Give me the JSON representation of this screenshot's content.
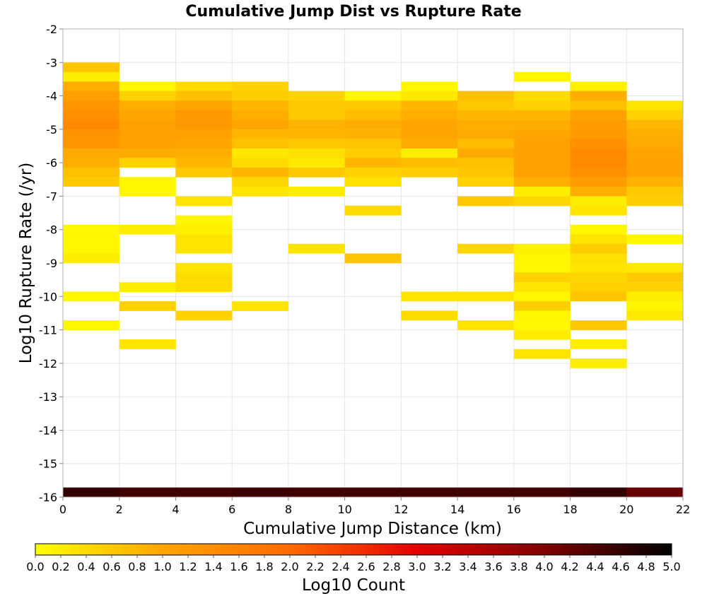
{
  "chart_data": {
    "type": "heatmap",
    "title": "Cumulative Jump Dist vs Rupture Rate",
    "xlabel": "Cumulative Jump Distance (km)",
    "ylabel": "Log10 Rupture Rate (/yr)",
    "xlim": [
      0,
      22
    ],
    "ylim": [
      -16,
      -2
    ],
    "xticks": [
      "0",
      "2",
      "4",
      "6",
      "8",
      "10",
      "12",
      "14",
      "16",
      "18",
      "20",
      "22"
    ],
    "yticks": [
      "-2",
      "-3",
      "-4",
      "-5",
      "-6",
      "-7",
      "-8",
      "-9",
      "-10",
      "-11",
      "-12",
      "-13",
      "-14",
      "-15",
      "-16"
    ],
    "grid": true,
    "x_bin_width": 2,
    "y_bin_height": 0.2857,
    "colorbar": {
      "label": "Log10 Count",
      "range": [
        0.0,
        5.0
      ],
      "ticks": [
        "0.0",
        "0.2",
        "0.4",
        "0.6",
        "0.8",
        "1.0",
        "1.2",
        "1.4",
        "1.6",
        "1.8",
        "2.0",
        "2.2",
        "2.4",
        "2.6",
        "2.8",
        "3.0",
        "3.2",
        "3.4",
        "3.6",
        "3.8",
        "4.0",
        "4.2",
        "4.4",
        "4.6",
        "4.8",
        "5.0"
      ],
      "colors": [
        "#ffff00",
        "#ffa500",
        "#ff6a00",
        "#e60000",
        "#800000",
        "#000000"
      ]
    },
    "bins_note": "columns by x start (km); each cell [y_bottom_log10_rate, log10_count]",
    "columns": [
      {
        "x": 0,
        "cells": [
          [
            -3.29,
            0.65
          ],
          [
            -3.57,
            0.2
          ],
          [
            -3.86,
            0.9
          ],
          [
            -4.14,
            1.1
          ],
          [
            -4.43,
            1.25
          ],
          [
            -4.71,
            1.35
          ],
          [
            -5.0,
            1.45
          ],
          [
            -5.29,
            1.3
          ],
          [
            -5.57,
            1.25
          ],
          [
            -5.86,
            0.95
          ],
          [
            -6.14,
            0.9
          ],
          [
            -6.43,
            0.7
          ],
          [
            -6.71,
            0.6
          ],
          [
            -8.14,
            0.1
          ],
          [
            -8.43,
            0.1
          ],
          [
            -8.71,
            0.1
          ],
          [
            -9.0,
            0.2
          ],
          [
            -10.14,
            0.1
          ],
          [
            -11.0,
            0.1
          ],
          [
            -16.0,
            4.6
          ]
        ]
      },
      {
        "x": 2,
        "cells": [
          [
            -3.86,
            0.1
          ],
          [
            -4.14,
            0.5
          ],
          [
            -4.43,
            0.9
          ],
          [
            -4.71,
            1.0
          ],
          [
            -5.0,
            1.05
          ],
          [
            -5.29,
            1.1
          ],
          [
            -5.57,
            1.05
          ],
          [
            -5.86,
            0.95
          ],
          [
            -6.14,
            0.5
          ],
          [
            -6.71,
            0.1
          ],
          [
            -7.0,
            0.1
          ],
          [
            -8.14,
            0.2
          ],
          [
            -9.86,
            0.2
          ],
          [
            -10.43,
            0.5
          ],
          [
            -11.57,
            0.3
          ],
          [
            -16.0,
            4.5
          ]
        ]
      },
      {
        "x": 4,
        "cells": [
          [
            -3.86,
            0.4
          ],
          [
            -4.14,
            0.7
          ],
          [
            -4.43,
            1.0
          ],
          [
            -4.71,
            1.2
          ],
          [
            -5.0,
            1.2
          ],
          [
            -5.29,
            1.1
          ],
          [
            -5.57,
            1.0
          ],
          [
            -5.86,
            0.9
          ],
          [
            -6.14,
            0.8
          ],
          [
            -6.43,
            0.6
          ],
          [
            -7.29,
            0.3
          ],
          [
            -7.86,
            0.1
          ],
          [
            -8.14,
            0.15
          ],
          [
            -8.43,
            0.3
          ],
          [
            -8.71,
            0.3
          ],
          [
            -9.29,
            0.3
          ],
          [
            -9.57,
            0.4
          ],
          [
            -9.86,
            0.4
          ],
          [
            -10.71,
            0.5
          ],
          [
            -16.0,
            4.5
          ]
        ]
      },
      {
        "x": 6,
        "cells": [
          [
            -3.86,
            0.5
          ],
          [
            -4.14,
            0.55
          ],
          [
            -4.43,
            0.8
          ],
          [
            -4.71,
            0.9
          ],
          [
            -5.0,
            1.0
          ],
          [
            -5.29,
            0.8
          ],
          [
            -5.57,
            0.7
          ],
          [
            -5.86,
            0.25
          ],
          [
            -6.14,
            0.4
          ],
          [
            -6.43,
            0.8
          ],
          [
            -6.71,
            0.45
          ],
          [
            -7.0,
            0.3
          ],
          [
            -10.43,
            0.3
          ],
          [
            -16.0,
            4.55
          ]
        ]
      },
      {
        "x": 8,
        "cells": [
          [
            -4.14,
            0.5
          ],
          [
            -4.43,
            0.6
          ],
          [
            -4.71,
            0.6
          ],
          [
            -5.0,
            0.85
          ],
          [
            -5.29,
            0.8
          ],
          [
            -5.57,
            0.6
          ],
          [
            -5.86,
            0.35
          ],
          [
            -6.14,
            0.25
          ],
          [
            -6.43,
            0.6
          ],
          [
            -7.0,
            0.2
          ],
          [
            -8.71,
            0.3
          ],
          [
            -16.0,
            4.5
          ]
        ]
      },
      {
        "x": 10,
        "cells": [
          [
            -4.14,
            0.1
          ],
          [
            -4.43,
            0.6
          ],
          [
            -4.71,
            0.75
          ],
          [
            -5.0,
            0.9
          ],
          [
            -5.29,
            0.85
          ],
          [
            -5.57,
            0.65
          ],
          [
            -5.86,
            0.55
          ],
          [
            -6.14,
            0.8
          ],
          [
            -6.43,
            0.5
          ],
          [
            -6.71,
            0.35
          ],
          [
            -7.57,
            0.4
          ],
          [
            -9.0,
            0.65
          ],
          [
            -16.0,
            4.5
          ]
        ]
      },
      {
        "x": 12,
        "cells": [
          [
            -3.86,
            0.1
          ],
          [
            -4.14,
            0.25
          ],
          [
            -4.43,
            0.8
          ],
          [
            -4.71,
            0.9
          ],
          [
            -5.0,
            1.0
          ],
          [
            -5.29,
            1.0
          ],
          [
            -5.57,
            0.95
          ],
          [
            -5.86,
            0.2
          ],
          [
            -6.14,
            0.75
          ],
          [
            -6.43,
            0.55
          ],
          [
            -10.14,
            0.3
          ],
          [
            -10.71,
            0.4
          ],
          [
            -16.0,
            4.5
          ]
        ]
      },
      {
        "x": 14,
        "cells": [
          [
            -4.14,
            0.7
          ],
          [
            -4.43,
            0.6
          ],
          [
            -4.71,
            0.8
          ],
          [
            -5.0,
            0.9
          ],
          [
            -5.29,
            0.95
          ],
          [
            -5.57,
            0.75
          ],
          [
            -5.86,
            0.95
          ],
          [
            -6.14,
            0.7
          ],
          [
            -6.43,
            0.65
          ],
          [
            -6.71,
            0.5
          ],
          [
            -7.29,
            0.6
          ],
          [
            -8.71,
            0.45
          ],
          [
            -10.14,
            0.3
          ],
          [
            -11.0,
            0.3
          ],
          [
            -16.0,
            4.5
          ]
        ]
      },
      {
        "x": 16,
        "cells": [
          [
            -3.57,
            0.1
          ],
          [
            -4.14,
            0.4
          ],
          [
            -4.43,
            0.5
          ],
          [
            -4.71,
            0.8
          ],
          [
            -5.0,
            0.9
          ],
          [
            -5.29,
            1.0
          ],
          [
            -5.57,
            1.05
          ],
          [
            -5.86,
            1.1
          ],
          [
            -6.14,
            1.05
          ],
          [
            -6.43,
            1.1
          ],
          [
            -6.71,
            0.9
          ],
          [
            -7.0,
            0.2
          ],
          [
            -7.29,
            0.45
          ],
          [
            -8.71,
            0.15
          ],
          [
            -9.0,
            0.1
          ],
          [
            -9.29,
            0.1
          ],
          [
            -9.57,
            0.5
          ],
          [
            -9.86,
            0.3
          ],
          [
            -10.14,
            0.1
          ],
          [
            -10.43,
            0.55
          ],
          [
            -10.71,
            0.1
          ],
          [
            -11.0,
            0.1
          ],
          [
            -11.29,
            0.2
          ],
          [
            -11.86,
            0.3
          ],
          [
            -16.0,
            4.5
          ]
        ]
      },
      {
        "x": 18,
        "cells": [
          [
            -3.86,
            0.15
          ],
          [
            -4.14,
            0.9
          ],
          [
            -4.43,
            0.7
          ],
          [
            -4.71,
            1.05
          ],
          [
            -5.0,
            1.15
          ],
          [
            -5.29,
            1.2
          ],
          [
            -5.57,
            1.35
          ],
          [
            -5.86,
            1.45
          ],
          [
            -6.14,
            1.45
          ],
          [
            -6.43,
            1.35
          ],
          [
            -6.71,
            1.15
          ],
          [
            -7.0,
            0.9
          ],
          [
            -7.29,
            0.2
          ],
          [
            -7.57,
            0.3
          ],
          [
            -8.14,
            0.1
          ],
          [
            -8.43,
            0.3
          ],
          [
            -8.71,
            0.55
          ],
          [
            -9.0,
            0.35
          ],
          [
            -9.29,
            0.3
          ],
          [
            -9.57,
            0.45
          ],
          [
            -9.86,
            0.5
          ],
          [
            -10.14,
            0.65
          ],
          [
            -11.0,
            0.6
          ],
          [
            -11.57,
            0.2
          ],
          [
            -12.14,
            0.2
          ],
          [
            -16.0,
            4.6
          ]
        ]
      },
      {
        "x": 20,
        "cells": [
          [
            -4.43,
            0.3
          ],
          [
            -4.71,
            0.5
          ],
          [
            -5.0,
            0.8
          ],
          [
            -5.29,
            0.9
          ],
          [
            -5.57,
            0.95
          ],
          [
            -5.86,
            1.0
          ],
          [
            -6.14,
            1.05
          ],
          [
            -6.43,
            1.05
          ],
          [
            -6.71,
            0.85
          ],
          [
            -7.0,
            0.6
          ],
          [
            -7.29,
            0.55
          ],
          [
            -8.43,
            0.1
          ],
          [
            -9.29,
            0.25
          ],
          [
            -9.57,
            0.6
          ],
          [
            -9.86,
            0.5
          ],
          [
            -10.14,
            0.2
          ],
          [
            -10.43,
            0.1
          ],
          [
            -10.71,
            0.25
          ],
          [
            -16.0,
            4.2
          ]
        ]
      }
    ]
  }
}
